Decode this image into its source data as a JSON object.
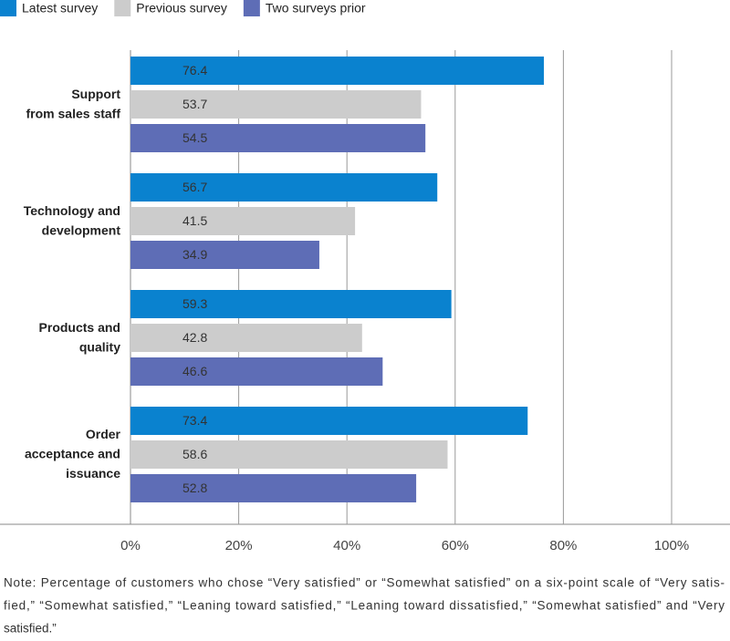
{
  "chart_data": {
    "type": "bar",
    "orientation": "horizontal",
    "categories": [
      [
        "Support",
        "from sales staff"
      ],
      [
        "Technology and",
        "development"
      ],
      [
        "Products and",
        "quality"
      ],
      [
        "Order",
        "acceptance and",
        "issuance"
      ]
    ],
    "series": [
      {
        "name": "Latest survey",
        "color": "#0a82cf",
        "values": [
          76.4,
          56.7,
          59.3,
          73.4
        ]
      },
      {
        "name": "Previous survey",
        "color": "#cccccc",
        "values": [
          53.7,
          41.5,
          42.8,
          58.6
        ]
      },
      {
        "name": "Two surveys prior",
        "color": "#5e6db6",
        "values": [
          54.5,
          34.9,
          46.6,
          52.8
        ]
      }
    ],
    "xlim": [
      0,
      100
    ],
    "xticks": [
      {
        "value": 0,
        "label": "0%"
      },
      {
        "value": 20,
        "label": "20%"
      },
      {
        "value": 40,
        "label": "40%"
      },
      {
        "value": 60,
        "label": "60%"
      },
      {
        "value": 80,
        "label": "80%"
      },
      {
        "value": 100,
        "label": "100%"
      }
    ],
    "grid": true,
    "legend": "top-left",
    "note": [
      "Note: Percentage of customers who chose “Very satisfied” or “Somewhat satisfied” on a six-point scale of “Very satis-",
      "fied,” “Somewhat satisfied,” “Leaning toward satisfied,” “Leaning toward dissatisfied,” “Somewhat satisfied” and “Very",
      "satisfied.”"
    ]
  }
}
